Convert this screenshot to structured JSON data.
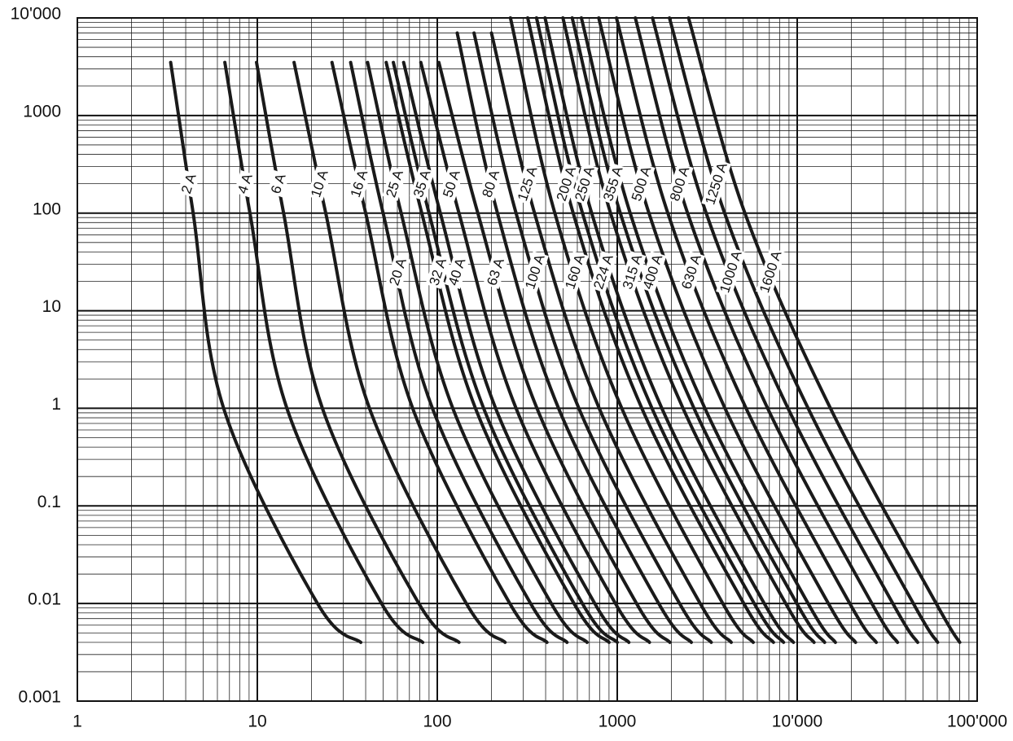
{
  "chart_data": {
    "type": "line",
    "xscale": "log",
    "yscale": "log",
    "grid": true,
    "color": "#1a1a1a",
    "xlim": [
      1,
      100000
    ],
    "ylim": [
      0.001,
      10000
    ],
    "xticks": [
      1,
      10,
      100,
      1000,
      {
        "value": 10000,
        "label": "10'000"
      },
      {
        "value": 100000,
        "label": "100'000"
      }
    ],
    "yticks": [
      0.001,
      0.01,
      0.1,
      1,
      10,
      100,
      1000,
      {
        "value": 10000,
        "label": "10'000"
      }
    ],
    "series": [
      {
        "name": "2 A",
        "x": [
          3.3,
          4.4,
          6.5,
          21.6,
          37.6
        ],
        "values": [
          3500,
          100,
          1,
          0.01,
          0.004
        ]
      },
      {
        "name": "4 A",
        "x": [
          6.6,
          9.1,
          14.6,
          49,
          83
        ],
        "values": [
          3500,
          100,
          1,
          0.01,
          0.004
        ]
      },
      {
        "name": "6 A",
        "x": [
          9.9,
          14,
          23,
          79,
          132
        ],
        "values": [
          3500,
          100,
          1,
          0.01,
          0.004
        ]
      },
      {
        "name": "10 A",
        "x": [
          16,
          24,
          42,
          145,
          238
        ],
        "values": [
          3500,
          100,
          1,
          0.01,
          0.004
        ]
      },
      {
        "name": "16 A",
        "x": [
          26,
          40,
          73,
          253,
          407
        ],
        "values": [
          3500,
          100,
          1,
          0.01,
          0.004
        ]
      },
      {
        "name": "20 A",
        "x": [
          33,
          50,
          94,
          330,
          526
        ],
        "values": [
          3500,
          100,
          1,
          0.01,
          0.004
        ]
      },
      {
        "name": "25 A",
        "x": [
          41,
          63,
          122,
          430,
          680
        ],
        "values": [
          3500,
          100,
          1,
          0.01,
          0.004
        ]
      },
      {
        "name": "32 A",
        "x": [
          52,
          82,
          163,
          575,
          900
        ],
        "values": [
          3500,
          100,
          1,
          0.01,
          0.004
        ]
      },
      {
        "name": "35 A",
        "x": [
          57,
          90,
          181,
          640,
          1000
        ],
        "values": [
          3500,
          100,
          1,
          0.01,
          0.004
        ]
      },
      {
        "name": "40 A",
        "x": [
          65,
          104,
          211,
          750,
          1160
        ],
        "values": [
          3500,
          100,
          1,
          0.01,
          0.004
        ]
      },
      {
        "name": "50 A",
        "x": [
          81,
          132,
          274,
          977,
          1510
        ],
        "values": [
          3500,
          100,
          1,
          0.01,
          0.004
        ]
      },
      {
        "name": "63 A",
        "x": [
          102,
          168,
          358,
          1280,
          1960
        ],
        "values": [
          3500,
          100,
          1,
          0.01,
          0.004
        ]
      },
      {
        "name": "80 A",
        "x": [
          129,
          216,
          472,
          1700,
          2580
        ],
        "values": [
          7000,
          100,
          1,
          0.01,
          0.004
        ]
      },
      {
        "name": "100 A",
        "x": [
          160,
          274,
          612,
          2220,
          3330
        ],
        "values": [
          7000,
          100,
          1,
          0.01,
          0.004
        ]
      },
      {
        "name": "125 A",
        "x": [
          200,
          347,
          794,
          2890,
          4300
        ],
        "values": [
          7000,
          100,
          1,
          0.01,
          0.004
        ]
      },
      {
        "name": "160 A",
        "x": [
          255,
          450,
          1060,
          3860,
          5700
        ],
        "values": [
          10000,
          100,
          1,
          0.01,
          0.004
        ]
      },
      {
        "name": "200 A",
        "x": [
          318,
          569,
          1370,
          5050,
          7380
        ],
        "values": [
          10000,
          100,
          1,
          0.01,
          0.004
        ]
      },
      {
        "name": "224 A",
        "x": [
          356,
          641,
          1560,
          5770,
          8400
        ],
        "values": [
          10000,
          100,
          1,
          0.01,
          0.004
        ]
      },
      {
        "name": "250 A",
        "x": [
          397,
          721,
          1770,
          6560,
          9530
        ],
        "values": [
          10000,
          100,
          1,
          0.01,
          0.004
        ]
      },
      {
        "name": "315 A",
        "x": [
          499,
          918,
          2320,
          8630,
          12400
        ],
        "values": [
          10000,
          100,
          1,
          0.01,
          0.004
        ]
      },
      {
        "name": "355 A",
        "x": [
          562,
          1040,
          2670,
          9950,
          14200
        ],
        "values": [
          10000,
          100,
          1,
          0.01,
          0.004
        ]
      },
      {
        "name": "400 A",
        "x": [
          632,
          1180,
          3070,
          11500,
          16300
        ],
        "values": [
          10000,
          100,
          1,
          0.01,
          0.004
        ]
      },
      {
        "name": "500 A",
        "x": [
          789,
          1500,
          3970,
          14900,
          21100
        ],
        "values": [
          10000,
          100,
          1,
          0.01,
          0.004
        ]
      },
      {
        "name": "630 A",
        "x": [
          990,
          1910,
          5200,
          19600,
          27500
        ],
        "values": [
          10000,
          100,
          1,
          0.01,
          0.004
        ]
      },
      {
        "name": "800 A",
        "x": [
          1260,
          2460,
          6850,
          26000,
          36100
        ],
        "values": [
          10000,
          100,
          1,
          0.01,
          0.004
        ]
      },
      {
        "name": "1000 A",
        "x": [
          1570,
          3120,
          8890,
          34000,
          46700
        ],
        "values": [
          10000,
          100,
          1,
          0.01,
          0.004
        ]
      },
      {
        "name": "1250 A",
        "x": [
          1950,
          3950,
          11500,
          44200,
          60300
        ],
        "values": [
          10000,
          100,
          1,
          0.01,
          0.004
        ]
      },
      {
        "name": "1600 A",
        "x": [
          2490,
          5120,
          15300,
          59200,
          80000
        ],
        "values": [
          10000,
          100,
          1,
          0.01,
          0.004
        ]
      }
    ]
  }
}
